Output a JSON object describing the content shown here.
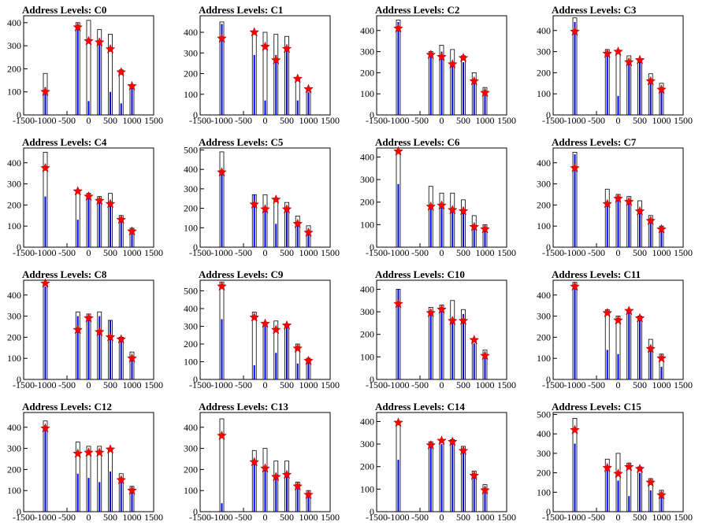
{
  "chart_data": [
    {
      "type": "histogram",
      "title": "Address Levels: C0",
      "x_ticks": [
        -1500,
        -1000,
        -500,
        0,
        500,
        1000,
        1500
      ],
      "xlim": [
        -1500,
        1500
      ],
      "y_ticks": [
        0,
        100,
        200,
        300,
        400
      ],
      "ylim": [
        0,
        430
      ],
      "series": [
        {
          "role": "black-outline",
          "values": [
            180,
            400,
            410,
            370,
            350,
            195,
            125
          ]
        },
        {
          "role": "blue-fill",
          "values": [
            120,
            380,
            60,
            310,
            100,
            50,
            120
          ]
        }
      ],
      "markers": {
        "x": [
          -1000,
          -250,
          0,
          250,
          500,
          750,
          1000
        ],
        "y": [
          100,
          380,
          320,
          315,
          285,
          185,
          125
        ]
      }
    },
    {
      "type": "histogram",
      "title": "Address Levels: C1",
      "x_ticks": [
        -1500,
        -1000,
        -500,
        0,
        500,
        1000,
        1500
      ],
      "xlim": [
        -1500,
        1500
      ],
      "y_ticks": [
        0,
        100,
        200,
        300,
        400
      ],
      "ylim": [
        0,
        480
      ],
      "series": [
        {
          "role": "black-outline",
          "values": [
            450,
            400,
            400,
            390,
            380,
            180,
            130
          ]
        },
        {
          "role": "blue-fill",
          "values": [
            440,
            290,
            70,
            290,
            310,
            70,
            110
          ]
        }
      ],
      "markers": {
        "x": [
          -1000,
          -250,
          0,
          250,
          500,
          750,
          1000
        ],
        "y": [
          370,
          400,
          330,
          265,
          320,
          175,
          125
        ]
      }
    },
    {
      "type": "histogram",
      "title": "Address Levels: C2",
      "x_ticks": [
        -1500,
        -1000,
        -500,
        0,
        500,
        1000,
        1500
      ],
      "xlim": [
        -1500,
        1500
      ],
      "y_ticks": [
        0,
        100,
        200,
        300,
        400
      ],
      "ylim": [
        0,
        470
      ],
      "series": [
        {
          "role": "black-outline",
          "values": [
            450,
            300,
            330,
            310,
            280,
            200,
            130
          ]
        },
        {
          "role": "blue-fill",
          "values": [
            440,
            280,
            300,
            240,
            250,
            160,
            100
          ]
        }
      ],
      "markers": {
        "x": [
          -1000,
          -250,
          0,
          250,
          500,
          750,
          1000
        ],
        "y": [
          410,
          285,
          275,
          240,
          270,
          160,
          105
        ]
      }
    },
    {
      "type": "histogram",
      "title": "Address Levels: C3",
      "x_ticks": [
        -1500,
        -1000,
        -500,
        0,
        500,
        1000,
        1500
      ],
      "xlim": [
        -1500,
        1500
      ],
      "y_ticks": [
        0,
        100,
        200,
        300,
        400
      ],
      "ylim": [
        0,
        470
      ],
      "series": [
        {
          "role": "black-outline",
          "values": [
            460,
            310,
            300,
            280,
            260,
            195,
            150
          ]
        },
        {
          "role": "blue-fill",
          "values": [
            440,
            290,
            90,
            240,
            250,
            150,
            115
          ]
        }
      ],
      "markers": {
        "x": [
          -1000,
          -250,
          0,
          250,
          500,
          750,
          1000
        ],
        "y": [
          395,
          290,
          300,
          250,
          260,
          160,
          120
        ]
      }
    },
    {
      "type": "histogram",
      "title": "Address Levels: C4",
      "x_ticks": [
        -1500,
        -1000,
        -500,
        0,
        500,
        1000,
        1500
      ],
      "xlim": [
        -1500,
        1500
      ],
      "y_ticks": [
        0,
        100,
        200,
        300,
        400
      ],
      "ylim": [
        0,
        470
      ],
      "series": [
        {
          "role": "black-outline",
          "values": [
            450,
            270,
            255,
            240,
            255,
            150,
            90
          ]
        },
        {
          "role": "blue-fill",
          "values": [
            240,
            130,
            240,
            220,
            200,
            130,
            70
          ]
        }
      ],
      "markers": {
        "x": [
          -1000,
          -250,
          0,
          250,
          500,
          750,
          1000
        ],
        "y": [
          375,
          265,
          240,
          220,
          205,
          130,
          75
        ]
      }
    },
    {
      "type": "histogram",
      "title": "Address Levels: C5",
      "x_ticks": [
        -1500,
        -1000,
        -500,
        0,
        500,
        1000,
        1500
      ],
      "xlim": [
        -1500,
        1500
      ],
      "y_ticks": [
        0,
        100,
        200,
        300,
        400,
        500
      ],
      "ylim": [
        0,
        510
      ],
      "series": [
        {
          "role": "black-outline",
          "values": [
            490,
            270,
            270,
            250,
            230,
            160,
            110
          ]
        },
        {
          "role": "blue-fill",
          "values": [
            380,
            270,
            190,
            120,
            190,
            120,
            80
          ]
        }
      ],
      "markers": {
        "x": [
          -1000,
          -250,
          0,
          250,
          500,
          750,
          1000
        ],
        "y": [
          385,
          220,
          195,
          245,
          195,
          120,
          75
        ]
      }
    },
    {
      "type": "histogram",
      "title": "Address Levels: C6",
      "x_ticks": [
        -1500,
        -1000,
        -500,
        0,
        500,
        1000,
        1500
      ],
      "xlim": [
        -1500,
        1500
      ],
      "y_ticks": [
        0,
        100,
        200,
        300,
        400
      ],
      "ylim": [
        0,
        440
      ],
      "series": [
        {
          "role": "black-outline",
          "values": [
            430,
            270,
            240,
            240,
            210,
            140,
            100
          ]
        },
        {
          "role": "blue-fill",
          "values": [
            280,
            180,
            180,
            160,
            170,
            90,
            80
          ]
        }
      ],
      "markers": {
        "x": [
          -1000,
          -250,
          0,
          250,
          500,
          750,
          1000
        ],
        "y": [
          425,
          180,
          185,
          165,
          160,
          90,
          80
        ]
      }
    },
    {
      "type": "histogram",
      "title": "Address Levels: C7",
      "x_ticks": [
        -1500,
        -1000,
        -500,
        0,
        500,
        1000,
        1500
      ],
      "xlim": [
        -1500,
        1500
      ],
      "y_ticks": [
        0,
        100,
        200,
        300,
        400
      ],
      "ylim": [
        0,
        470
      ],
      "series": [
        {
          "role": "black-outline",
          "values": [
            450,
            275,
            250,
            240,
            220,
            150,
            100
          ]
        },
        {
          "role": "blue-fill",
          "values": [
            440,
            200,
            230,
            210,
            170,
            120,
            80
          ]
        }
      ],
      "markers": {
        "x": [
          -1000,
          -250,
          0,
          250,
          500,
          750,
          1000
        ],
        "y": [
          375,
          205,
          230,
          215,
          170,
          125,
          85
        ]
      }
    },
    {
      "type": "histogram",
      "title": "Address Levels: C8",
      "x_ticks": [
        -1500,
        -1000,
        -500,
        0,
        500,
        1000,
        1500
      ],
      "xlim": [
        -1500,
        1500
      ],
      "y_ticks": [
        0,
        100,
        200,
        300,
        400
      ],
      "ylim": [
        0,
        470
      ],
      "series": [
        {
          "role": "black-outline",
          "values": [
            450,
            320,
            310,
            320,
            280,
            200,
            130
          ]
        },
        {
          "role": "blue-fill",
          "values": [
            440,
            300,
            290,
            300,
            280,
            190,
            100
          ]
        }
      ],
      "markers": {
        "x": [
          -1000,
          -250,
          0,
          250,
          500,
          750,
          1000
        ],
        "y": [
          455,
          235,
          290,
          225,
          200,
          190,
          100
        ]
      }
    },
    {
      "type": "histogram",
      "title": "Address Levels: C9",
      "x_ticks": [
        -1500,
        -1000,
        -500,
        0,
        500,
        1000,
        1500
      ],
      "xlim": [
        -1500,
        1500
      ],
      "y_ticks": [
        0,
        100,
        200,
        300,
        400,
        500
      ],
      "ylim": [
        0,
        560
      ],
      "series": [
        {
          "role": "black-outline",
          "values": [
            550,
            380,
            320,
            330,
            310,
            200,
            120
          ]
        },
        {
          "role": "blue-fill",
          "values": [
            340,
            80,
            300,
            150,
            310,
            90,
            100
          ]
        }
      ],
      "markers": {
        "x": [
          -1000,
          -250,
          0,
          250,
          500,
          750,
          1000
        ],
        "y": [
          525,
          350,
          315,
          280,
          305,
          175,
          105
        ]
      }
    },
    {
      "type": "histogram",
      "title": "Address Levels: C10",
      "x_ticks": [
        -1500,
        -1000,
        -500,
        0,
        500,
        1000,
        1500
      ],
      "xlim": [
        -1500,
        1500
      ],
      "y_ticks": [
        0,
        100,
        200,
        300,
        400
      ],
      "ylim": [
        0,
        440
      ],
      "series": [
        {
          "role": "black-outline",
          "values": [
            400,
            320,
            330,
            350,
            310,
            180,
            130
          ]
        },
        {
          "role": "blue-fill",
          "values": [
            400,
            300,
            310,
            270,
            290,
            160,
            110
          ]
        }
      ],
      "markers": {
        "x": [
          -1000,
          -250,
          0,
          250,
          500,
          750,
          1000
        ],
        "y": [
          335,
          295,
          310,
          260,
          260,
          175,
          105
        ]
      }
    },
    {
      "type": "histogram",
      "title": "Address Levels: C11",
      "x_ticks": [
        -1500,
        -1000,
        -500,
        0,
        500,
        1000,
        1500
      ],
      "xlim": [
        -1500,
        1500
      ],
      "y_ticks": [
        0,
        100,
        200,
        300,
        400
      ],
      "ylim": [
        0,
        470
      ],
      "series": [
        {
          "role": "black-outline",
          "values": [
            460,
            330,
            300,
            330,
            300,
            190,
            120
          ]
        },
        {
          "role": "blue-fill",
          "values": [
            440,
            140,
            120,
            320,
            290,
            140,
            60
          ]
        }
      ],
      "markers": {
        "x": [
          -1000,
          -250,
          0,
          250,
          500,
          750,
          1000
        ],
        "y": [
          440,
          315,
          280,
          325,
          290,
          145,
          100
        ]
      }
    },
    {
      "type": "histogram",
      "title": "Address Levels: C12",
      "x_ticks": [
        -1500,
        -1000,
        -500,
        0,
        500,
        1000,
        1500
      ],
      "xlim": [
        -1500,
        1500
      ],
      "y_ticks": [
        0,
        100,
        200,
        300,
        400
      ],
      "ylim": [
        0,
        470
      ],
      "series": [
        {
          "role": "black-outline",
          "values": [
            430,
            330,
            310,
            310,
            300,
            180,
            120
          ]
        },
        {
          "role": "blue-fill",
          "values": [
            400,
            180,
            160,
            140,
            190,
            150,
            90
          ]
        }
      ],
      "markers": {
        "x": [
          -1000,
          -250,
          0,
          250,
          500,
          750,
          1000
        ],
        "y": [
          395,
          275,
          280,
          280,
          295,
          150,
          100
        ]
      }
    },
    {
      "type": "histogram",
      "title": "Address Levels: C13",
      "x_ticks": [
        -1500,
        -1000,
        -500,
        0,
        500,
        1000,
        1500
      ],
      "xlim": [
        -1500,
        1500
      ],
      "y_ticks": [
        0,
        100,
        200,
        300,
        400
      ],
      "ylim": [
        0,
        470
      ],
      "series": [
        {
          "role": "black-outline",
          "values": [
            440,
            290,
            300,
            240,
            240,
            140,
            100
          ]
        },
        {
          "role": "blue-fill",
          "values": [
            40,
            230,
            200,
            170,
            170,
            120,
            80
          ]
        }
      ],
      "markers": {
        "x": [
          -1000,
          -250,
          0,
          250,
          500,
          750,
          1000
        ],
        "y": [
          360,
          235,
          205,
          165,
          175,
          120,
          80
        ]
      }
    },
    {
      "type": "histogram",
      "title": "Address Levels: C14",
      "x_ticks": [
        -1500,
        -1000,
        -500,
        0,
        500,
        1000,
        1500
      ],
      "xlim": [
        -1500,
        1500
      ],
      "y_ticks": [
        0,
        100,
        200,
        300,
        400
      ],
      "ylim": [
        0,
        440
      ],
      "series": [
        {
          "role": "black-outline",
          "values": [
            400,
            310,
            310,
            320,
            290,
            180,
            120
          ]
        },
        {
          "role": "blue-fill",
          "values": [
            230,
            290,
            300,
            300,
            260,
            170,
            100
          ]
        }
      ],
      "markers": {
        "x": [
          -1000,
          -250,
          0,
          250,
          500,
          750,
          1000
        ],
        "y": [
          395,
          295,
          315,
          310,
          270,
          160,
          95
        ]
      }
    },
    {
      "type": "histogram",
      "title": "Address Levels: C15",
      "x_ticks": [
        -1500,
        -1000,
        -500,
        0,
        500,
        1000,
        1500
      ],
      "xlim": [
        -1500,
        1500
      ],
      "y_ticks": [
        0,
        100,
        200,
        300,
        400,
        500
      ],
      "ylim": [
        0,
        510
      ],
      "series": [
        {
          "role": "black-outline",
          "values": [
            480,
            270,
            300,
            250,
            230,
            170,
            110
          ]
        },
        {
          "role": "blue-fill",
          "values": [
            350,
            240,
            160,
            80,
            200,
            110,
            80
          ]
        }
      ],
      "markers": {
        "x": [
          -1000,
          -250,
          0,
          250,
          500,
          750,
          1000
        ],
        "y": [
          420,
          225,
          195,
          230,
          220,
          150,
          85
        ]
      }
    }
  ],
  "colors": {
    "marker": "#ff0000",
    "fill": "#0000ff",
    "outline": "#000000"
  }
}
